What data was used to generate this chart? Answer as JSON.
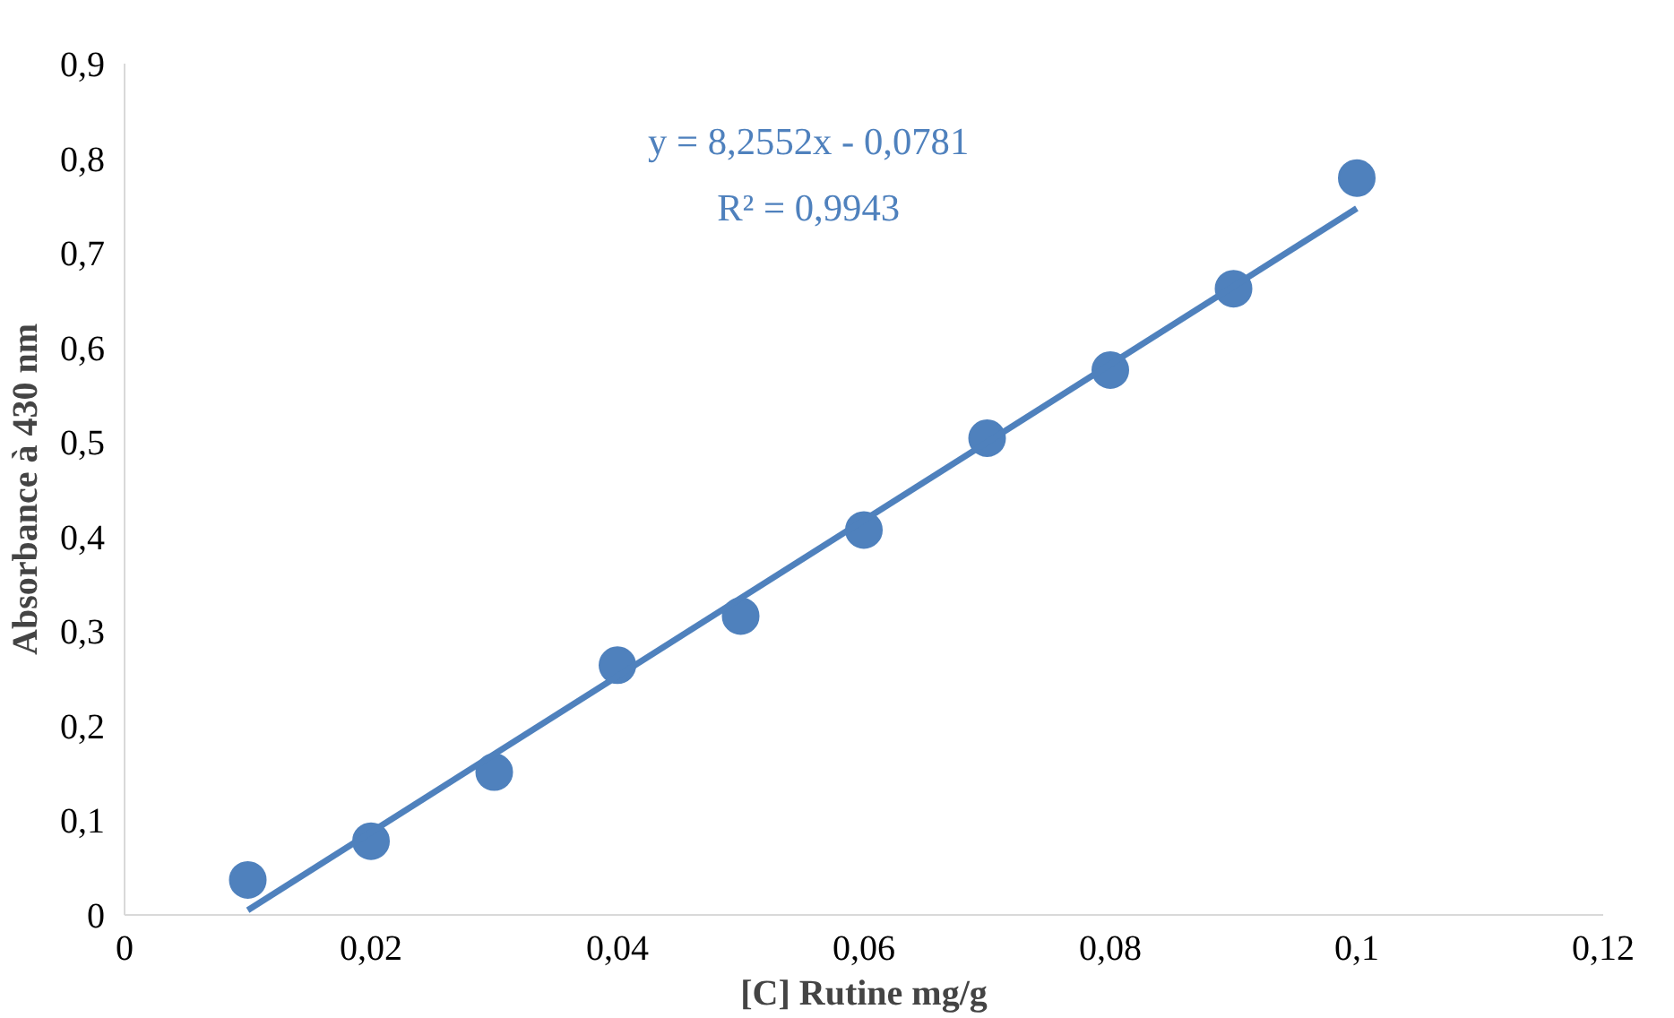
{
  "chart_data": {
    "type": "scatter",
    "xlabel": "[C] Rutine mg/g",
    "ylabel": "Absorbance à 430 nm",
    "annotations": [
      "y = 8,2552x - 0,0781",
      "R² = 0,9943"
    ],
    "x": [
      0.01,
      0.02,
      0.03,
      0.04,
      0.05,
      0.06,
      0.07,
      0.08,
      0.09,
      0.1
    ],
    "series": [
      {
        "color": "#4f81bd",
        "marker": "circle",
        "values": [
          0.037,
          0.078,
          0.151,
          0.264,
          0.316,
          0.407,
          0.504,
          0.576,
          0.662,
          0.779
        ]
      },
      {
        "type": "line",
        "color": "#4f81bd",
        "marker": "none",
        "x": [
          0.01,
          0.1
        ],
        "values": [
          0.005,
          0.747
        ]
      }
    ],
    "xlim": [
      0,
      0.12
    ],
    "ylim": [
      0,
      0.9
    ],
    "xticks": [
      0,
      {
        "value": 0.02,
        "label": "0,02"
      },
      {
        "value": 0.04,
        "label": "0,04"
      },
      {
        "value": 0.06,
        "label": "0,06"
      },
      {
        "value": 0.08,
        "label": "0,08"
      },
      {
        "value": 0.1,
        "label": "0,1"
      },
      {
        "value": 0.12,
        "label": "0,12"
      }
    ],
    "yticks": [
      0,
      {
        "value": 0.1,
        "label": "0,1"
      },
      {
        "value": 0.2,
        "label": "0,2"
      },
      {
        "value": 0.3,
        "label": "0,3"
      },
      {
        "value": 0.4,
        "label": "0,4"
      },
      {
        "value": 0.5,
        "label": "0,5"
      },
      {
        "value": 0.6,
        "label": "0,6"
      },
      {
        "value": 0.7,
        "label": "0,7"
      },
      {
        "value": 0.8,
        "label": "0,8"
      },
      {
        "value": 0.9,
        "label": "0,9"
      }
    ],
    "grid": false,
    "line_style": "solid"
  }
}
